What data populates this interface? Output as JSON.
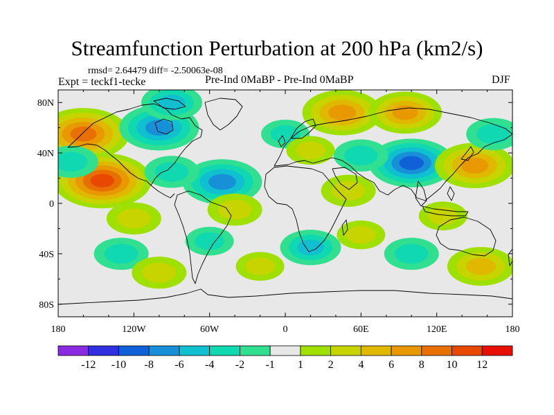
{
  "title": "Streamfunction Perturbation at 200 hPa (km2/s)",
  "stats_line": "rmsd= 2.64479 diff= -2.50063e-08",
  "expt_line": "Expt = teckf1-tecke",
  "comparison_line": "Pre-Ind 0MaBP - Pre-Ind 0MaBP",
  "season": "DJF",
  "map": {
    "projection": "cylindrical equidistant",
    "lon_range": [
      -180,
      180
    ],
    "lat_range": [
      -90,
      90
    ],
    "background_color": "#e8e8e8",
    "lat_ticks": [
      "80N",
      "40N",
      "0",
      "40S",
      "80S"
    ],
    "lon_ticks": [
      "180",
      "120W",
      "60W",
      "0",
      "60E",
      "120E",
      "180"
    ]
  },
  "colorbar": {
    "colors": [
      "#8a2be2",
      "#3030e0",
      "#1060d8",
      "#1890d8",
      "#10c0d0",
      "#10d8b0",
      "#30e090",
      "#e8e8e8",
      "#a0e000",
      "#c8d400",
      "#e0b800",
      "#e89800",
      "#e87000",
      "#e84800",
      "#e81000"
    ],
    "labels": [
      "-12",
      "-10",
      "-8",
      "-6",
      "-4",
      "-2",
      "-1",
      "1",
      "2",
      "4",
      "6",
      "8",
      "10",
      "12"
    ]
  },
  "field_features": [
    {
      "lon": -160,
      "lat": 55,
      "value": 9
    },
    {
      "lon": -145,
      "lat": 18,
      "value": 10
    },
    {
      "lon": -100,
      "lat": 60,
      "value": -7
    },
    {
      "lon": -90,
      "lat": 80,
      "value": -4
    },
    {
      "lon": -50,
      "lat": 17,
      "value": -7
    },
    {
      "lon": -90,
      "lat": 25,
      "value": -3
    },
    {
      "lon": -170,
      "lat": 33,
      "value": -3
    },
    {
      "lon": 45,
      "lat": 72,
      "value": 7
    },
    {
      "lon": 95,
      "lat": 72,
      "value": 6
    },
    {
      "lon": 100,
      "lat": 32,
      "value": -8
    },
    {
      "lon": 60,
      "lat": 38,
      "value": -3
    },
    {
      "lon": 150,
      "lat": 30,
      "value": 7
    },
    {
      "lon": 165,
      "lat": 55,
      "value": -3
    },
    {
      "lon": -120,
      "lat": -12,
      "value": 3
    },
    {
      "lon": -40,
      "lat": -5,
      "value": 3
    },
    {
      "lon": 50,
      "lat": 10,
      "value": 3
    },
    {
      "lon": 125,
      "lat": -10,
      "value": 2
    },
    {
      "lon": 155,
      "lat": -50,
      "value": 5
    },
    {
      "lon": -130,
      "lat": -40,
      "value": -3
    },
    {
      "lon": 20,
      "lat": -35,
      "value": -4
    },
    {
      "lon": 100,
      "lat": -40,
      "value": -3
    },
    {
      "lon": -20,
      "lat": -50,
      "value": 2
    },
    {
      "lon": -100,
      "lat": -55,
      "value": 3
    },
    {
      "lon": 60,
      "lat": -25,
      "value": 2
    },
    {
      "lon": -60,
      "lat": -30,
      "value": -2
    },
    {
      "lon": 0,
      "lat": 55,
      "value": -2
    },
    {
      "lon": 20,
      "lat": 42,
      "value": 2
    }
  ]
}
